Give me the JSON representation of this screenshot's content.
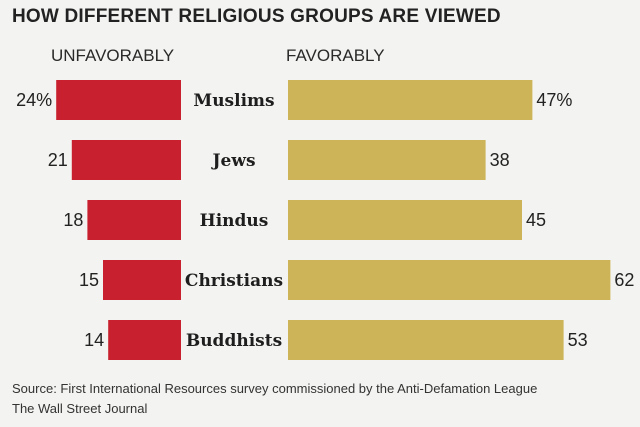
{
  "chart_data": {
    "type": "bar",
    "title": "HOW DIFFERENT RELIGIOUS GROUPS ARE VIEWED",
    "categories": [
      "Muslims",
      "Jews",
      "Hindus",
      "Christians",
      "Buddhists"
    ],
    "series": [
      {
        "name": "UNFAVORABLY",
        "values": [
          24,
          21,
          18,
          15,
          14
        ],
        "labels": [
          "24%",
          "21",
          "18",
          "15",
          "14"
        ],
        "color": "#c8202e"
      },
      {
        "name": "FAVORABLY",
        "values": [
          47,
          38,
          45,
          62,
          53
        ],
        "labels": [
          "47%",
          "38",
          "45",
          "62",
          "53"
        ],
        "color": "#cdb458"
      }
    ],
    "legend": "column headers above bars"
  },
  "source": {
    "line1": "Source: First International Resources survey commissioned by the Anti-Defamation League",
    "line2": "The Wall Street Journal"
  }
}
